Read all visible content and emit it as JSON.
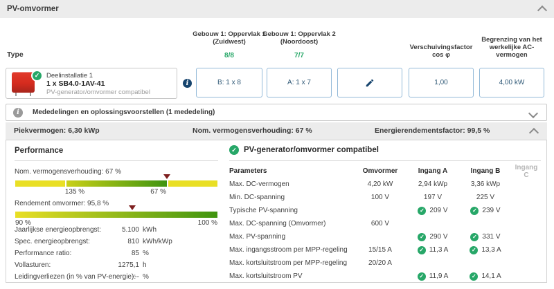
{
  "header": {
    "title": "PV-omvormer"
  },
  "icons": {
    "check": "✓",
    "info": "i"
  },
  "colors": {
    "accent_green": "#27a768",
    "accent_navy": "#17456e",
    "box_border_blue": "#92b9d8",
    "bar_yellow": "#e9df25",
    "bar_green": "#3f9410",
    "marker_red": "#7e1f1f",
    "bar_gray": "#ececec",
    "inverter_red": "#d52b1e"
  },
  "columns": {
    "type_label": "Type",
    "surface1": {
      "line1": "Gebouw 1: Oppervlak 1",
      "line2": "(Zuidwest)",
      "fraction": "8/8"
    },
    "surface2": {
      "line1": "Gebouw 1: Oppervlak 2",
      "line2": "(Noordoost)",
      "fraction": "7/7"
    },
    "cosphi": {
      "line1": "Verschuivingsfactor",
      "line2": "cos φ"
    },
    "ac_limit": {
      "line1": "Begrenzing van het",
      "line2": "werkelijke AC-",
      "line3": "vermogen"
    }
  },
  "inverter": {
    "name": "Deelinstallatie 1",
    "model": "1 x SB4.0-1AV-41",
    "status": "PV-generator/omvormer compatibel",
    "config_b": "B: 1 x 8",
    "config_a": "A: 1 x 7",
    "cosphi_value": "1,00",
    "ac_limit_value": "4,00 kW"
  },
  "messages": {
    "label": "Mededelingen en oplossingsvoorstellen (1 mededeling)"
  },
  "summary": {
    "peak_power": "Piekvermogen: 6,30 kWp",
    "nominal_ratio": "Nom. vermogensverhouding: 67 %",
    "energy_factor": "Energierendementsfactor: 99,5 %"
  },
  "performance": {
    "title": "Performance",
    "ratio_bar": {
      "label": "Nom. vermogensverhouding: 67 %",
      "tick1": "135 %",
      "tick2": "67 %",
      "marker_pos_pct": 75,
      "gap_pos_pct": 24.6
    },
    "efficiency_bar": {
      "label": "Rendement omvormer: 95,8 %",
      "min": "90 %",
      "max": "100 %",
      "marker_pos_pct": 58
    },
    "stats": [
      {
        "label": "Jaarlijkse energieopbrengst:",
        "value": "5.100",
        "unit": "kWh"
      },
      {
        "label": "Spec. energieopbrengst:",
        "value": "810",
        "unit": "kWh/kWp"
      },
      {
        "label": "Performance ratio:",
        "value": "85",
        "unit": "%"
      },
      {
        "label": "Vollasturen:",
        "value": "1275,1",
        "unit": "h"
      },
      {
        "label": "Leidingverliezen (in % van PV-energie):",
        "value": "---",
        "unit": "%"
      }
    ]
  },
  "compat": {
    "title": "PV-generator/omvormer compatibel",
    "headers": [
      "Parameters",
      "Omvormer",
      "Ingang A",
      "Ingang B",
      "Ingang C"
    ],
    "rows": [
      {
        "param": "Max. DC-vermogen",
        "cells": [
          {
            "text": "4,20 kW"
          },
          {
            "text": "2,94 kWp"
          },
          {
            "text": "3,36 kWp"
          },
          {
            "text": ""
          }
        ]
      },
      {
        "param": "Min. DC-spanning",
        "cells": [
          {
            "text": "100 V"
          },
          {
            "text": "197 V"
          },
          {
            "text": "225 V"
          },
          {
            "text": ""
          }
        ]
      },
      {
        "param": "Typische PV-spanning",
        "cells": [
          {
            "text": ""
          },
          {
            "text": "209 V",
            "check": true
          },
          {
            "text": "239 V",
            "check": true
          },
          {
            "text": ""
          }
        ]
      },
      {
        "param": "Max. DC-spanning (Omvormer)",
        "cells": [
          {
            "text": "600 V"
          },
          {
            "text": ""
          },
          {
            "text": ""
          },
          {
            "text": ""
          }
        ]
      },
      {
        "param": "Max. PV-spanning",
        "cells": [
          {
            "text": ""
          },
          {
            "text": "290 V",
            "check": true
          },
          {
            "text": "331 V",
            "check": true
          },
          {
            "text": ""
          }
        ]
      },
      {
        "param": "Max. ingangsstroom per MPP-regeling",
        "cells": [
          {
            "text": "15/15 A"
          },
          {
            "text": "11,3 A",
            "check": true
          },
          {
            "text": "13,3 A",
            "check": true
          },
          {
            "text": ""
          }
        ]
      },
      {
        "param": "Max. kortsluitstroom per MPP-regeling",
        "cells": [
          {
            "text": "20/20 A"
          },
          {
            "text": ""
          },
          {
            "text": ""
          },
          {
            "text": ""
          }
        ]
      },
      {
        "param": "Max. kortsluitstroom PV",
        "cells": [
          {
            "text": ""
          },
          {
            "text": "11,9 A",
            "check": true
          },
          {
            "text": "14,1 A",
            "check": true
          },
          {
            "text": ""
          }
        ]
      }
    ]
  }
}
